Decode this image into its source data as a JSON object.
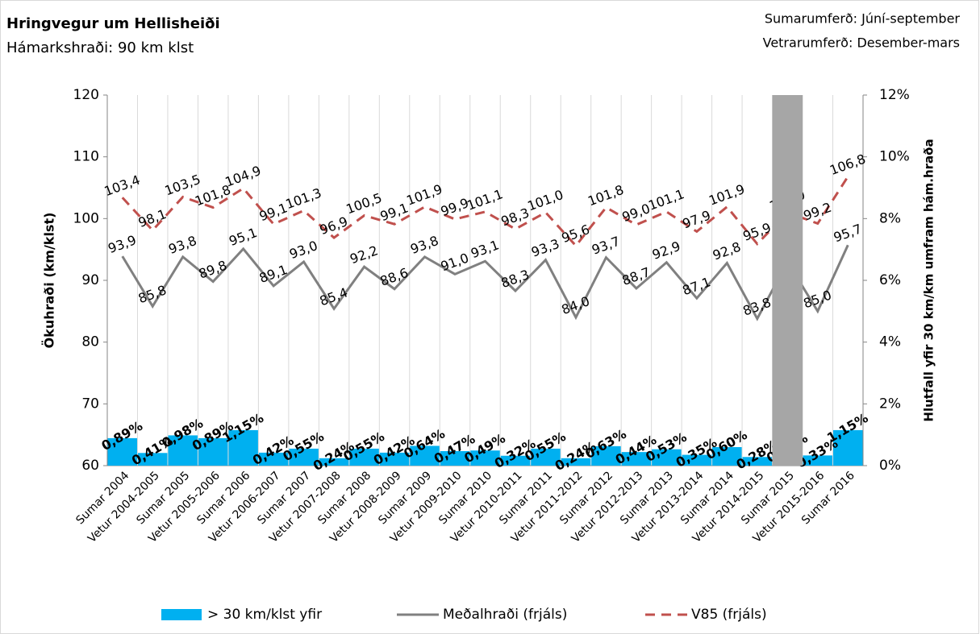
{
  "chart_data": {
    "type": "combo",
    "title": "Hringvegur um Hellisheiði",
    "subtitle": "Hámarkshraði: 90 km klst",
    "notes": [
      "Sumarumferð:  Júní-september",
      "Vetrarumferð:  Desember-mars"
    ],
    "y_label": "Ökuhraði (km/klst)",
    "y2_label": "Hlutfall yfir 30 km/km umfram hám.hraða",
    "categories": [
      "Sumar 2004",
      "Vetur 2004-2005",
      "Sumar 2005",
      "Vetur 2005-2006",
      "Sumar 2006",
      "Vetur 2006-2007",
      "Sumar 2007",
      "Vetur 2007-2008",
      "Sumar 2008",
      "Vetur 2008-2009",
      "Sumar 2009",
      "Vetur 2009-2010",
      "Sumar 2010",
      "Vetur 2010-2011",
      "Sumar 2011",
      "Vetur 2011-2012",
      "Sumar 2012",
      "Vetur 2012-2013",
      "Sumar 2013",
      "Vetur 2013-2014",
      "Sumar 2014",
      "Vetur 2014-2015",
      "Sumar 2015",
      "Vetur 2015-2016",
      "Sumar 2016"
    ],
    "highlight": "Sumar 2015",
    "highlight_color": "#a6a6a6",
    "ylim": [
      60,
      120
    ],
    "yticks": [
      60,
      70,
      80,
      90,
      100,
      110,
      120
    ],
    "y2lim": [
      0,
      12
    ],
    "y2ticks": [
      {
        "value": 0,
        "label": "0%"
      },
      {
        "value": 2,
        "label": "2%"
      },
      {
        "value": 4,
        "label": "4%"
      },
      {
        "value": 6,
        "label": "6%"
      },
      {
        "value": 8,
        "label": "8%"
      },
      {
        "value": 10,
        "label": "10%"
      },
      {
        "value": 12,
        "label": "12%"
      }
    ],
    "grid": "x",
    "series": [
      {
        "name": "> 30 km/klst yfir",
        "type": "bar",
        "axis": "y2",
        "color": "#00b0f0",
        "values": [
          0.89,
          0.41,
          0.98,
          0.89,
          1.15,
          0.42,
          0.55,
          0.24,
          0.55,
          0.42,
          0.64,
          0.47,
          0.49,
          0.32,
          0.55,
          0.24,
          0.63,
          0.44,
          0.53,
          0.35,
          0.6,
          0.28,
          0.5,
          0.33,
          1.15
        ],
        "value_labels": [
          "0,89%",
          "0,41%",
          "0,98%",
          "0,89%",
          "1,15%",
          "0,42%",
          "0,55%",
          "0,24%",
          "0,55%",
          "0,42%",
          "0,64%",
          "0,47%",
          "0,49%",
          "0,32%",
          "0,55%",
          "0,24%",
          "0,63%",
          "0,44%",
          "0,53%",
          "0,35%",
          "0,60%",
          "0,28%",
          "0,50%",
          "0,33%",
          "1,15%"
        ]
      },
      {
        "name": "Meðalhraði (frjáls)",
        "type": "line",
        "color": "#808080",
        "values": [
          93.9,
          85.8,
          93.8,
          89.8,
          95.1,
          89.1,
          93.0,
          85.4,
          92.2,
          88.6,
          93.8,
          91.0,
          93.1,
          88.3,
          93.3,
          84.0,
          93.7,
          88.7,
          92.9,
          87.1,
          92.8,
          83.8,
          93.0,
          85.0,
          95.7
        ],
        "value_labels": [
          "93,9",
          "85,8",
          "93,8",
          "89,8",
          "95,1",
          "89,1",
          "93,0",
          "85,4",
          "92,2",
          "88,6",
          "93,8",
          "91,0",
          "93,1",
          "88,3",
          "93,3",
          "84,0",
          "93,7",
          "88,7",
          "92,9",
          "87,1",
          "92,8",
          "83,8",
          "93,0",
          "85,0",
          "95,7"
        ]
      },
      {
        "name": "V85 (frjáls)",
        "type": "line",
        "dashed": true,
        "color": "#c0504d",
        "values": [
          103.4,
          98.1,
          103.5,
          101.8,
          104.9,
          99.1,
          101.3,
          96.9,
          100.5,
          99.1,
          101.9,
          99.9,
          101.1,
          98.3,
          101.0,
          95.6,
          101.8,
          99.0,
          101.1,
          97.9,
          101.9,
          95.9,
          101.0,
          99.2,
          106.8
        ],
        "value_labels": [
          "103,4",
          "98,1",
          "103,5",
          "101,8",
          "104,9",
          "99,1",
          "101,3",
          "96,9",
          "100,5",
          "99,1",
          "101,9",
          "99,9",
          "101,1",
          "98,3",
          "101,0",
          "95,6",
          "101,8",
          "99,0",
          "101,1",
          "97,9",
          "101,9",
          "95,9",
          "101,0",
          "99,2",
          "106,8"
        ]
      }
    ]
  }
}
